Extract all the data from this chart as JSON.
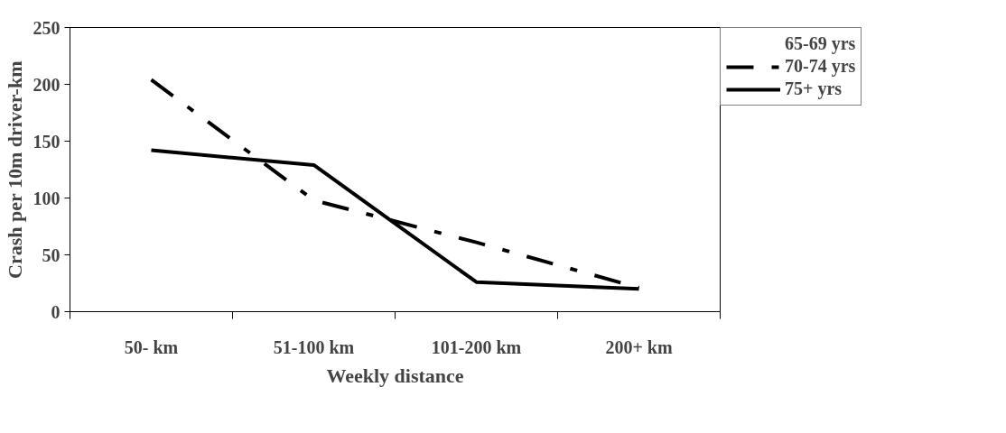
{
  "chart_data": {
    "type": "line",
    "xlabel": "Weekly distance",
    "ylabel": "Crash per 10m driver-km",
    "categories": [
      "50- km",
      "51-100 km",
      "101-200 km",
      "200+ km"
    ],
    "series": [
      {
        "name": "65-69 yrs",
        "values": [
          null,
          null,
          null,
          null
        ]
      },
      {
        "name": "70-74 yrs",
        "color": "#000000",
        "values": [
          204,
          98,
          61,
          21
        ],
        "line_style": "dashdot"
      },
      {
        "name": "75+ yrs",
        "color": "#000000",
        "values": [
          142,
          129,
          26,
          20
        ],
        "line_style": "solid"
      }
    ],
    "ylim": [
      0,
      250
    ],
    "yticks": [
      0,
      50,
      100,
      150,
      200,
      250
    ],
    "grid": false,
    "legend": "right",
    "marker": "none"
  }
}
